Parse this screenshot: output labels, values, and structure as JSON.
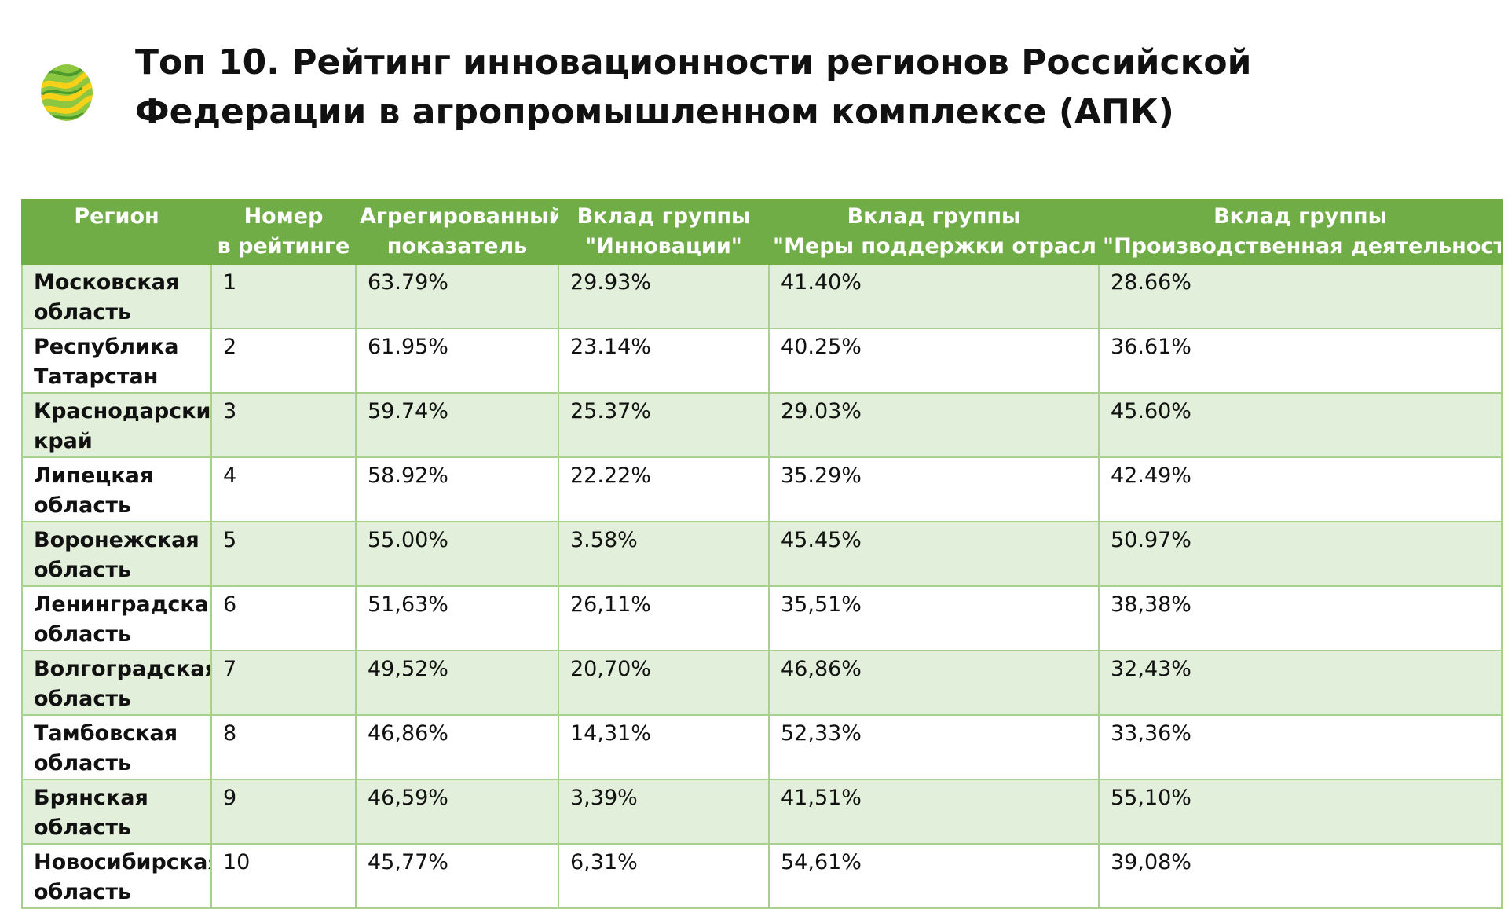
{
  "title": "Топ 10. Рейтинг инновационности регионов Российской Федерации в агропромышленном комплексе (АПК)",
  "logo": {
    "icon": "green-yellow-leaf-logo",
    "colors": [
      "#8dc63f",
      "#f7d117",
      "#4a9a2c"
    ]
  },
  "table": {
    "header_bg": "#70ad47",
    "odd_row_bg": "#e2efda",
    "headers": [
      {
        "line1": "Регион",
        "line2": ""
      },
      {
        "line1": "Номер",
        "line2": "в рейтинге"
      },
      {
        "line1": "Агрегированный",
        "line2": "показатель"
      },
      {
        "line1": "Вклад группы",
        "line2": "\"Инновации\""
      },
      {
        "line1": "Вклад группы",
        "line2": "\"Меры поддержки отрасли"
      },
      {
        "line1": "Вклад группы",
        "line2": "\"Производственная деятельность\""
      }
    ],
    "rows": [
      {
        "region": "Московская область",
        "rank": "1",
        "aggregate": "63.79%",
        "innovation": "29.93%",
        "support": "41.40%",
        "production": "28.66%"
      },
      {
        "region": "Республика Татарстан",
        "rank": "2",
        "aggregate": "61.95%",
        "innovation": "23.14%",
        "support": "40.25%",
        "production": "36.61%"
      },
      {
        "region": "Краснодарский край",
        "rank": "3",
        "aggregate": "59.74%",
        "innovation": "25.37%",
        "support": "29.03%",
        "production": "45.60%"
      },
      {
        "region": "Липецкая область",
        "rank": "4",
        "aggregate": "58.92%",
        "innovation": "22.22%",
        "support": "35.29%",
        "production": "42.49%"
      },
      {
        "region": "Воронежская область",
        "rank": "5",
        "aggregate": "55.00%",
        "innovation": "3.58%",
        "support": "45.45%",
        "production": "50.97%"
      },
      {
        "region": "Ленинградская область",
        "rank": "6",
        "aggregate": "51,63%",
        "innovation": "26,11%",
        "support": "35,51%",
        "production": "38,38%"
      },
      {
        "region": "Волгоградская область",
        "rank": "7",
        "aggregate": "49,52%",
        "innovation": "20,70%",
        "support": "46,86%",
        "production": "32,43%"
      },
      {
        "region": "Тамбовская область",
        "rank": "8",
        "aggregate": "46,86%",
        "innovation": "14,31%",
        "support": "52,33%",
        "production": "33,36%"
      },
      {
        "region": "Брянская область",
        "rank": "9",
        "aggregate": "46,59%",
        "innovation": "3,39%",
        "support": "41,51%",
        "production": "55,10%"
      },
      {
        "region": "Новосибирская область",
        "rank": "10",
        "aggregate": "45,77%",
        "innovation": "6,31%",
        "support": "54,61%",
        "production": "39,08%"
      }
    ]
  }
}
